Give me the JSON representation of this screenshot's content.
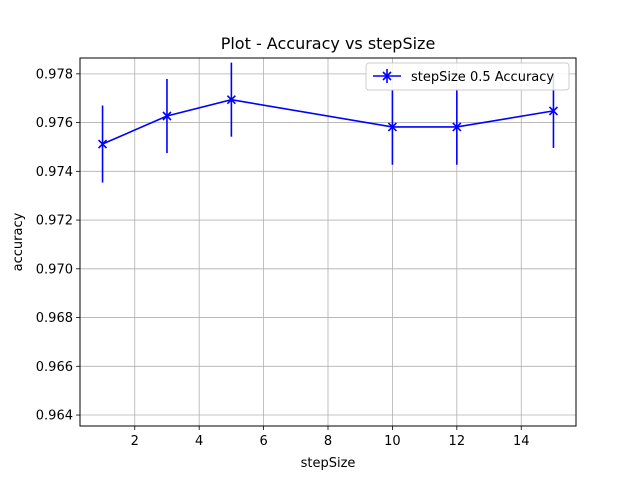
{
  "chart_data": {
    "type": "line",
    "title": "Plot - Accuracy vs stepSize",
    "xlabel": "stepSize",
    "ylabel": "accuracy",
    "xlim": [
      0.3,
      15.7
    ],
    "ylim": [
      0.96355,
      0.97865
    ],
    "xticks": [
      2,
      4,
      6,
      8,
      10,
      12,
      14
    ],
    "xtick_labels": [
      "2",
      "4",
      "6",
      "8",
      "10",
      "12",
      "14"
    ],
    "yticks": [
      0.964,
      0.966,
      0.968,
      0.97,
      0.972,
      0.974,
      0.976,
      0.978
    ],
    "ytick_labels": [
      "0.964",
      "0.966",
      "0.968",
      "0.970",
      "0.972",
      "0.974",
      "0.976",
      "0.978"
    ],
    "grid": true,
    "legend_position": "top-right",
    "series": [
      {
        "name": "stepSize 0.5 Accuracy",
        "color": "#0000ff",
        "marker": "x",
        "x": [
          1,
          3,
          5,
          10,
          12,
          15
        ],
        "y": [
          0.97512,
          0.97627,
          0.97694,
          0.97582,
          0.97582,
          0.97648
        ],
        "err": [
          0.00158,
          0.00152,
          0.00152,
          0.00155,
          0.00155,
          0.00152
        ]
      }
    ]
  }
}
